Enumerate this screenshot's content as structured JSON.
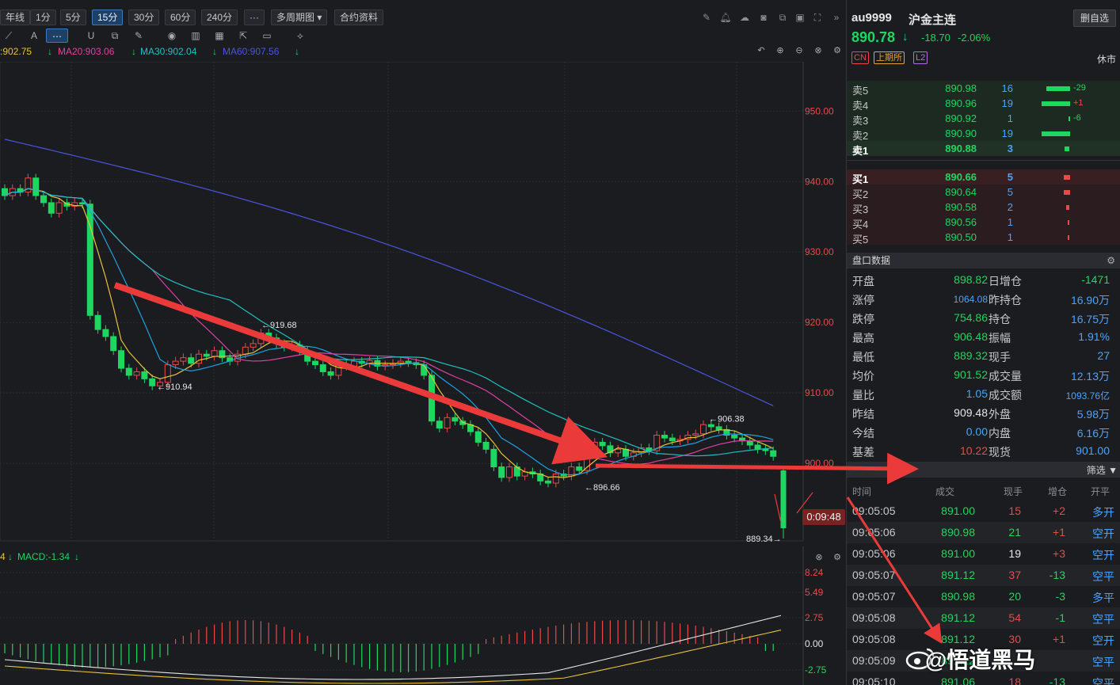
{
  "toolbar": {
    "timeframes": [
      {
        "label": "年线",
        "active": false
      },
      {
        "label": "1分",
        "active": false
      },
      {
        "label": "5分",
        "active": false
      },
      {
        "label": "15分",
        "active": true
      },
      {
        "label": "30分",
        "active": false
      },
      {
        "label": "60分",
        "active": false
      },
      {
        "label": "240分",
        "active": false
      },
      {
        "label": "···",
        "active": false
      },
      {
        "label": "多周期图 ▾",
        "active": false
      },
      {
        "label": "合约资料",
        "active": false
      }
    ]
  },
  "ma_legend": {
    "ma5": ":902.75",
    "ma20": "MA20:903.06",
    "ma30": "MA30:902.04",
    "ma60": "MA60:907.56",
    "arrow": "↓",
    "colors": {
      "ma5": "#e7c23a",
      "ma20": "#e040a0",
      "ma30": "#20c0c0",
      "ma60": "#4a55e0"
    }
  },
  "macd_legend": {
    "prefix": "4",
    "label": "MACD:-1.34",
    "arrow": "↓"
  },
  "timer": "0:09:48",
  "chart_data": {
    "type": "candlestick",
    "y_axis": {
      "ticks": [
        "950.00",
        "940.00",
        "930.00",
        "920.00",
        "910.00",
        "900.00"
      ],
      "range": [
        889,
        957
      ]
    },
    "macd_axis": {
      "ticks": [
        "8.24",
        "5.49",
        "2.75",
        "0.00",
        "-2.75"
      ]
    },
    "annotations": [
      {
        "label": "←919.68"
      },
      {
        "label": "←910.94"
      },
      {
        "label": "←906.38"
      },
      {
        "label": "←896.66"
      },
      {
        "label": "889.34→"
      }
    ],
    "colors": {
      "up": "#e84a4a",
      "down": "#1ed760"
    }
  },
  "quote": {
    "symbol": "au9999",
    "name": "沪金主连",
    "del_button": "删自选",
    "price": "890.78",
    "arrow": "↓",
    "change": "-18.70",
    "change_pct": "-2.06%",
    "tags": [
      "CN",
      "上期所",
      "L2"
    ],
    "status": "休市"
  },
  "asks": [
    {
      "label": "卖5",
      "price": "890.98",
      "vol": "16",
      "delta": "-29"
    },
    {
      "label": "卖4",
      "price": "890.96",
      "vol": "19",
      "delta": "+1"
    },
    {
      "label": "卖3",
      "price": "890.92",
      "vol": "1",
      "delta": "-6"
    },
    {
      "label": "卖2",
      "price": "890.90",
      "vol": "19",
      "delta": ""
    },
    {
      "label": "卖1",
      "price": "890.88",
      "vol": "3",
      "delta": ""
    }
  ],
  "bids": [
    {
      "label": "买1",
      "price": "890.66",
      "vol": "5"
    },
    {
      "label": "买2",
      "price": "890.64",
      "vol": "5"
    },
    {
      "label": "买3",
      "price": "890.58",
      "vol": "2"
    },
    {
      "label": "买4",
      "price": "890.56",
      "vol": "1"
    },
    {
      "label": "买5",
      "price": "890.50",
      "vol": "1"
    }
  ],
  "panel_title": "盘口数据",
  "stats": [
    {
      "l": "开盘",
      "v": "898.82",
      "vc": "green",
      "l2": "日增仓",
      "v2": "-1471",
      "v2c": "green"
    },
    {
      "l": "涨停",
      "v": "1064.08",
      "vc": "blue",
      "l2": "昨持仓",
      "v2": "16.90万",
      "v2c": "blue"
    },
    {
      "l": "跌停",
      "v": "754.86",
      "vc": "green",
      "l2": "持仓",
      "v2": "16.75万",
      "v2c": "blue"
    },
    {
      "l": "最高",
      "v": "906.48",
      "vc": "green",
      "l2": "振幅",
      "v2": "1.91%",
      "v2c": "blue"
    },
    {
      "l": "最低",
      "v": "889.32",
      "vc": "green",
      "l2": "现手",
      "v2": "27",
      "v2c": "blue"
    },
    {
      "l": "均价",
      "v": "901.52",
      "vc": "green",
      "l2": "成交量",
      "v2": "12.13万",
      "v2c": "blue"
    },
    {
      "l": "量比",
      "v": "1.05",
      "vc": "blue",
      "l2": "成交额",
      "v2": "1093.76亿",
      "v2c": "blue"
    },
    {
      "l": "昨结",
      "v": "909.48",
      "vc": "white",
      "l2": "外盘",
      "v2": "5.98万",
      "v2c": "blue"
    },
    {
      "l": "今结",
      "v": "0.00",
      "vc": "blue",
      "l2": "内盘",
      "v2": "6.16万",
      "v2c": "blue"
    },
    {
      "l": "基差",
      "v": "10.22",
      "vc": "red",
      "l2": "现货",
      "v2": "901.00",
      "v2c": "blue"
    }
  ],
  "filter_label": "筛选",
  "tick_headers": [
    "时间",
    "成交",
    "现手",
    "增仓",
    "开平"
  ],
  "ticks": [
    {
      "time": "09:05:05",
      "price": "891.00",
      "vol": "15",
      "vc": "red",
      "oi": "+2",
      "oic": "red",
      "type": "多开"
    },
    {
      "time": "09:05:06",
      "price": "890.98",
      "vol": "21",
      "vc": "green",
      "oi": "+1",
      "oic": "red",
      "type": "空开"
    },
    {
      "time": "09:05:06",
      "price": "891.00",
      "vol": "19",
      "vc": "white",
      "oi": "+3",
      "oic": "red",
      "type": "空开"
    },
    {
      "time": "09:05:07",
      "price": "891.12",
      "vol": "37",
      "vc": "red",
      "oi": "-13",
      "oic": "green",
      "type": "空平"
    },
    {
      "time": "09:05:07",
      "price": "890.98",
      "vol": "20",
      "vc": "green",
      "oi": "-3",
      "oic": "green",
      "type": "多平"
    },
    {
      "time": "09:05:08",
      "price": "891.12",
      "vol": "54",
      "vc": "red",
      "oi": "-1",
      "oic": "green",
      "type": "空平"
    },
    {
      "time": "09:05:08",
      "price": "891.12",
      "vol": "30",
      "vc": "red",
      "oi": "+1",
      "oic": "red",
      "type": "空开"
    },
    {
      "time": "09:05:09",
      "price": "891.12",
      "vol": "",
      "vc": "red",
      "oi": "",
      "oic": "red",
      "type": "空平"
    },
    {
      "time": "09:05:10",
      "price": "891.06",
      "vol": "18",
      "vc": "red",
      "oi": "-13",
      "oic": "green",
      "type": "空平"
    }
  ],
  "watermark": "@悟道黑马"
}
